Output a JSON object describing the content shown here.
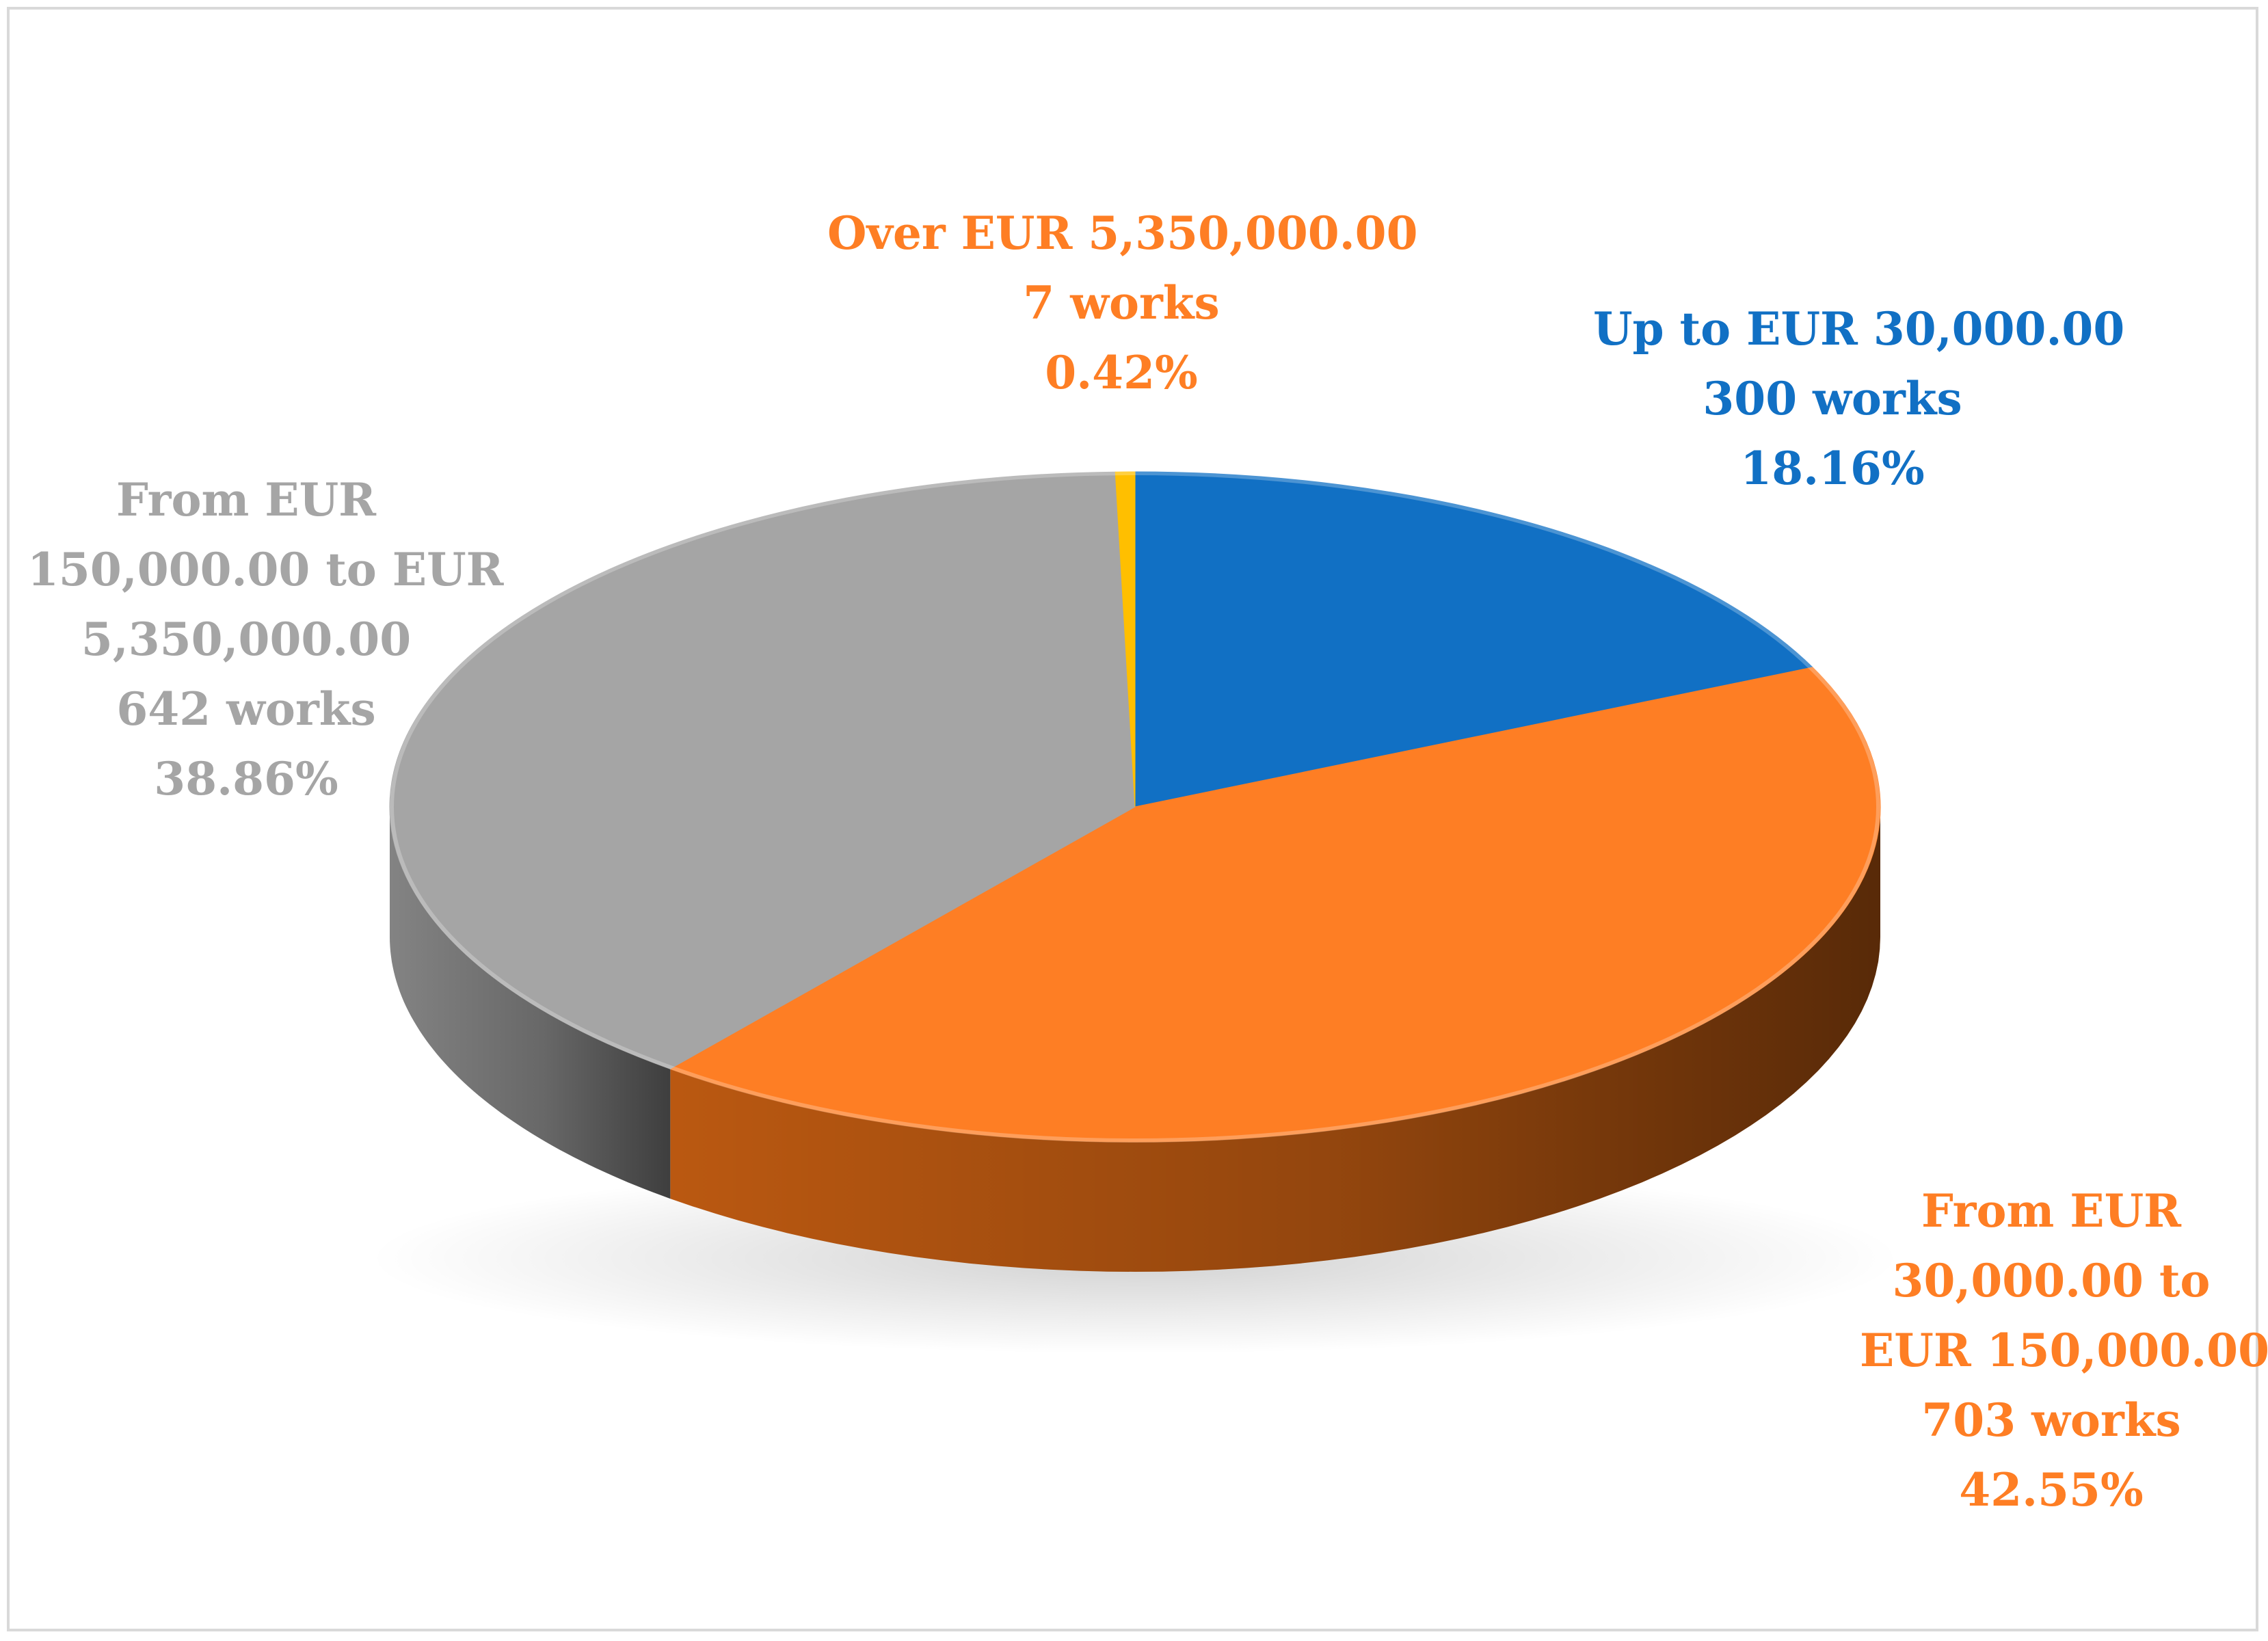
{
  "chart_data": {
    "type": "pie",
    "title": "",
    "slices": [
      {
        "label_lines": [
          "Up to EUR 30,000.00"
        ],
        "works": 300,
        "works_text": "300 works",
        "percent": 18.16,
        "percent_text": "18.16%",
        "color": "#1170c4",
        "side_color": "#0b4a86",
        "label_color": "#1170c4"
      },
      {
        "label_lines": [
          "From EUR",
          "30,000.00 to",
          "EUR 150,000.00"
        ],
        "works": 703,
        "works_text": "703 works",
        "percent": 42.55,
        "percent_text": "42.55%",
        "color": "#fe7e24",
        "side_color": "#c45d12",
        "label_color": "#fe7e24"
      },
      {
        "label_lines": [
          "From EUR",
          "150,000.00 to EUR",
          "5,350,000.00"
        ],
        "works": 642,
        "works_text": "642 works",
        "percent": 38.86,
        "percent_text": "38.86%",
        "color": "#a5a5a5",
        "side_color": "#8a8a8a",
        "label_color": "#a5a5a5"
      },
      {
        "label_lines": [
          "Over EUR 5,350,000.00"
        ],
        "works": 7,
        "works_text": "7 works",
        "percent": 0.42,
        "percent_text": "0.42%",
        "color": "#ffbf00",
        "side_color": "#c79500",
        "label_color": "#fe7e24"
      }
    ],
    "legend": "none"
  }
}
